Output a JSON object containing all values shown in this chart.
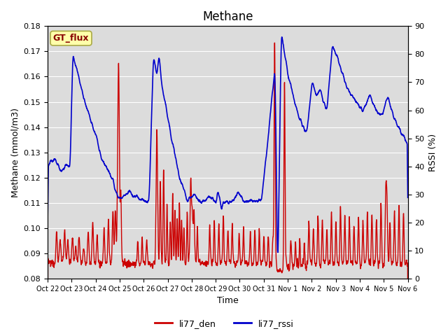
{
  "title": "Methane",
  "ylabel_left": "Methane (mmol/m3)",
  "ylabel_right": "RSSI (%)",
  "xlabel": "Time",
  "ylim_left": [
    0.08,
    0.18
  ],
  "ylim_right": [
    0,
    90
  ],
  "yticks_left": [
    0.08,
    0.09,
    0.1,
    0.11,
    0.12,
    0.13,
    0.14,
    0.15,
    0.16,
    0.17,
    0.18
  ],
  "yticks_right": [
    0,
    10,
    20,
    30,
    40,
    50,
    60,
    70,
    80,
    90
  ],
  "xtick_labels": [
    "Oct 22",
    "Oct 23",
    "Oct 24",
    "Oct 25",
    "Oct 26",
    "Oct 27",
    "Oct 28",
    "Oct 29",
    "Oct 30",
    "Oct 31",
    "Nov 1",
    "Nov 2",
    "Nov 3",
    "Nov 4",
    "Nov 5",
    "Nov 6"
  ],
  "color_red": "#cc0000",
  "color_blue": "#0000cc",
  "bg_color": "#dcdcdc",
  "annotation_text": "GT_flux",
  "annotation_bg": "#ffffaa",
  "annotation_border": "#aaaa44",
  "legend_red": "li77_den",
  "legend_blue": "li77_rssi",
  "fig_width": 6.4,
  "fig_height": 4.8,
  "dpi": 100
}
